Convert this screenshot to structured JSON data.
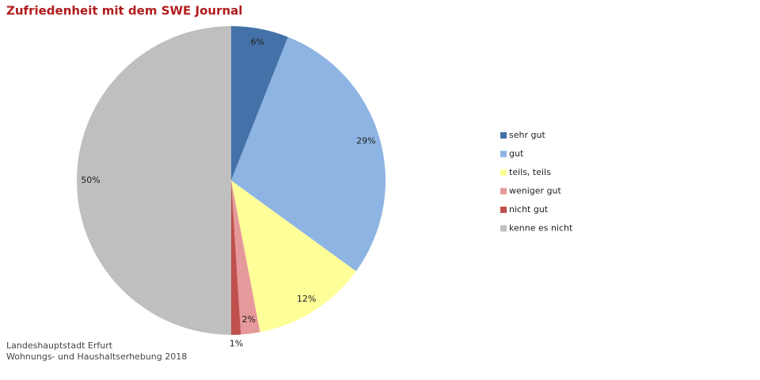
{
  "chart_data": {
    "type": "pie",
    "title": "Zufriedenheit mit dem SWE Journal",
    "categories": [
      "sehr gut",
      "gut",
      "teils, teils",
      "weniger gut",
      "nicht gut",
      "kenne es nicht"
    ],
    "values": [
      6,
      29,
      12,
      2,
      1,
      50
    ],
    "value_labels": [
      "6%",
      "29%",
      "12%",
      "2%",
      "1%",
      "50%"
    ],
    "colors": [
      "#4472a8",
      "#8eb4e3",
      "#ffff99",
      "#e6999a",
      "#c0504d",
      "#bfbfbf"
    ],
    "legend": "right",
    "source": [
      "Landeshauptstadt Erfurt",
      "Wohnungs- und Haushaltserhebung 2018"
    ]
  }
}
